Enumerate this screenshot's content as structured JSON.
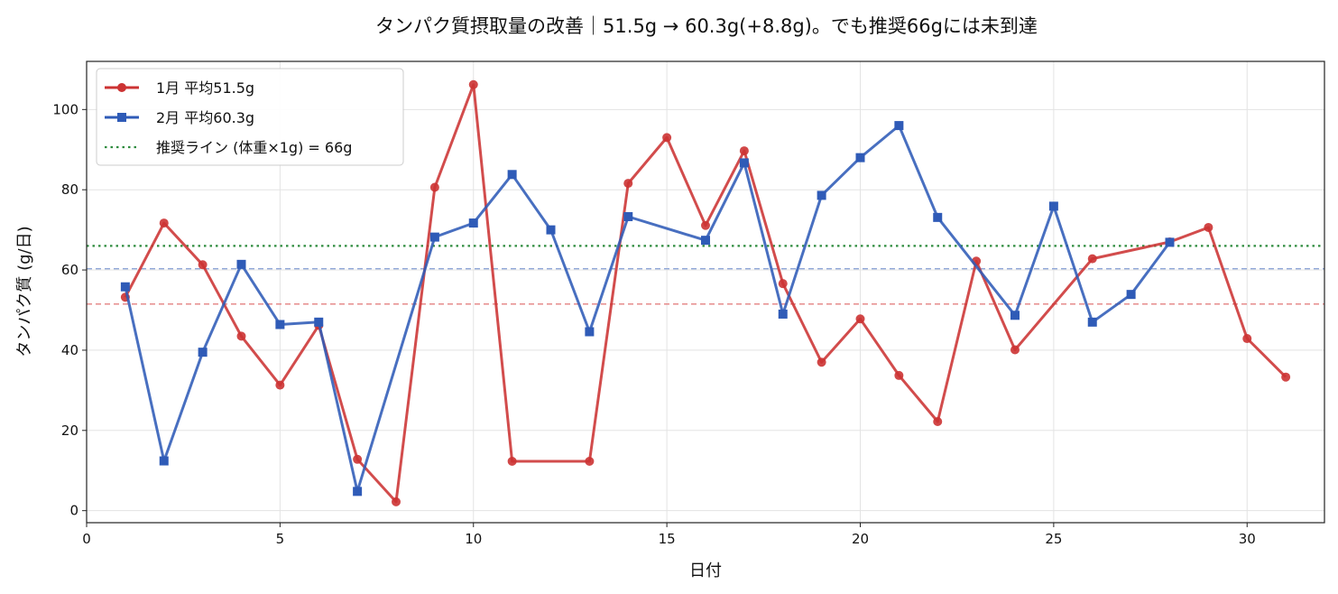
{
  "chart_data": {
    "type": "line",
    "title": "タンパク質摂取量の改善｜51.5g → 60.3g(+8.8g)。でも推奨66gには未到達",
    "xlabel": "日付",
    "ylabel": "タンパク質 (g/日)",
    "xlim": [
      0,
      32
    ],
    "ylim": [
      -3,
      112
    ],
    "xticks": [
      0,
      5,
      10,
      15,
      20,
      25,
      30
    ],
    "yticks": [
      0,
      20,
      40,
      60,
      80,
      100
    ],
    "grid": true,
    "legend_position": "upper-left",
    "series": [
      {
        "name": "1月 平均51.5g",
        "color": "#cc3333",
        "marker": "circle",
        "x": [
          1,
          2,
          3,
          4,
          5,
          6,
          7,
          8,
          9,
          10,
          11,
          13,
          14,
          15,
          16,
          17,
          18,
          19,
          20,
          21,
          22,
          23,
          24,
          26,
          28,
          29,
          30,
          31
        ],
        "y": [
          53.2,
          71.7,
          61.3,
          43.5,
          31.3,
          46.2,
          12.8,
          2.2,
          80.6,
          106.2,
          12.3,
          12.3,
          81.6,
          93.0,
          71.1,
          89.7,
          56.6,
          37.0,
          47.8,
          33.7,
          22.2,
          62.2,
          40.1,
          62.8,
          67.0,
          70.6,
          42.9,
          33.3
        ]
      },
      {
        "name": "2月 平均60.3g",
        "color": "#2f5bb7",
        "marker": "square",
        "x": [
          1,
          2,
          3,
          4,
          5,
          6,
          7,
          9,
          10,
          11,
          12,
          13,
          14,
          16,
          17,
          18,
          19,
          20,
          21,
          22,
          24,
          25,
          26,
          27,
          28
        ],
        "y": [
          55.8,
          12.4,
          39.5,
          61.4,
          46.4,
          47.0,
          4.8,
          68.2,
          71.7,
          83.8,
          70.0,
          44.6,
          73.3,
          67.4,
          86.7,
          49.0,
          78.6,
          88.0,
          96.0,
          73.1,
          48.7,
          75.9,
          47.0,
          53.9,
          66.9
        ]
      }
    ],
    "reference_lines": [
      {
        "name": "推奨ライン (体重×1g) = 66g",
        "y": 66,
        "color": "#2e8b3e",
        "style": "dotted",
        "in_legend": true
      },
      {
        "y": 60.3,
        "color": "#8fa6d8",
        "style": "dashed",
        "in_legend": false
      },
      {
        "y": 51.5,
        "color": "#e48080",
        "style": "dashed",
        "in_legend": false
      }
    ]
  }
}
